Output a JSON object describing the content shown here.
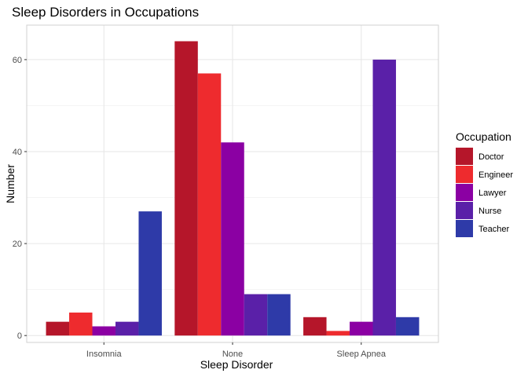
{
  "colors": {
    "Doctor": "#b5162a",
    "Engineer": "#ee2b2e",
    "Lawyer": "#8b00a3",
    "Nurse": "#5a20a8",
    "Teacher": "#2e3aa8",
    "grid_major": "#e6e6e6",
    "grid_minor": "#f2f2f2",
    "panel_border": "#d0d0d0"
  },
  "chart_data": {
    "type": "bar",
    "title": "Sleep Disorders in Occupations",
    "xlabel": "Sleep Disorder",
    "ylabel": "Number",
    "categories": [
      "Insomnia",
      "None",
      "Sleep Apnea"
    ],
    "series": [
      {
        "name": "Doctor",
        "values": [
          3,
          64,
          4
        ]
      },
      {
        "name": "Engineer",
        "values": [
          5,
          57,
          1
        ]
      },
      {
        "name": "Lawyer",
        "values": [
          2,
          42,
          3
        ]
      },
      {
        "name": "Nurse",
        "values": [
          3,
          9,
          60
        ]
      },
      {
        "name": "Teacher",
        "values": [
          27,
          9,
          4
        ]
      }
    ],
    "yticks": [
      0,
      20,
      40,
      60
    ],
    "ylim": [
      -1.5,
      67.5
    ],
    "grid": true,
    "legend": {
      "title": "Occupation",
      "position": "right"
    }
  }
}
